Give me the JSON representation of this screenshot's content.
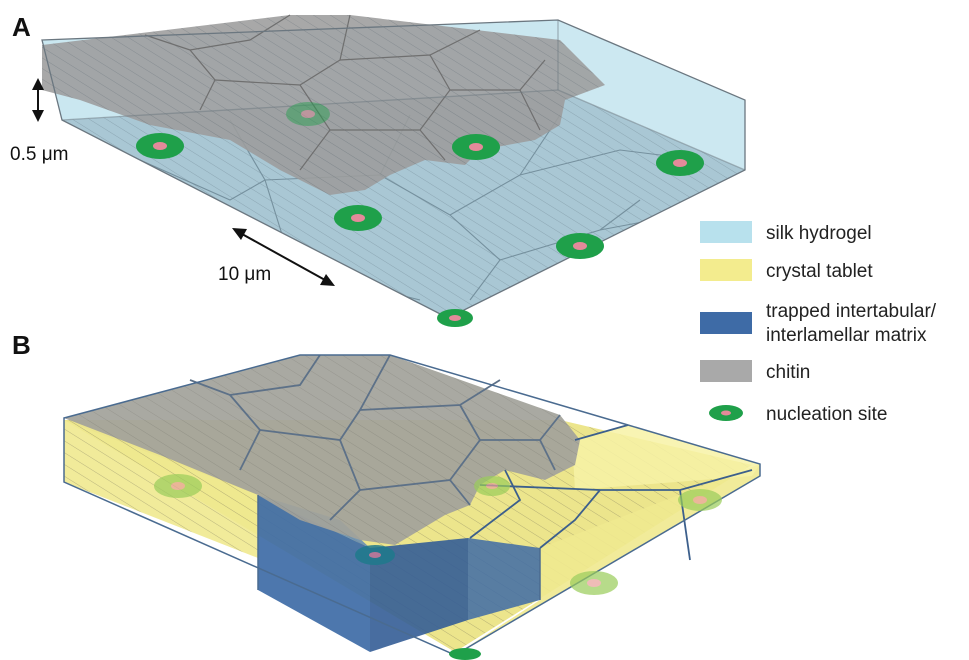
{
  "panels": [
    {
      "label": "A"
    },
    {
      "label": "B"
    }
  ],
  "dimensions": {
    "thickness": "0.5 μm",
    "width": "10 μm"
  },
  "legend": [
    {
      "label": "silk hydrogel",
      "color": "#b8e1ed",
      "kind": "swatch"
    },
    {
      "label": "crystal tablet",
      "color": "#f3ec8e",
      "kind": "swatch"
    },
    {
      "label": "trapped intertabular/",
      "label2": "interlamellar matrix",
      "color": "#3e6ba6",
      "kind": "swatch"
    },
    {
      "label": "chitin",
      "color": "#a9a9a9",
      "kind": "swatch"
    },
    {
      "label": "nucleation site",
      "color": "#1fa04a",
      "kind": "dot"
    }
  ],
  "colors": {
    "silk_hydrogel": "#b8e1ed",
    "crystal_tablet": "#f3ec8e",
    "matrix": "#3e6ba6",
    "chitin": "#a9a9a9",
    "nucleation_outer": "#1fa04a",
    "nucleation_inner": "#e48a9a"
  }
}
